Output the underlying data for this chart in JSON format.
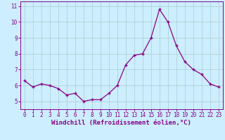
{
  "x": [
    0,
    1,
    2,
    3,
    4,
    5,
    6,
    7,
    8,
    9,
    10,
    11,
    12,
    13,
    14,
    15,
    16,
    17,
    18,
    19,
    20,
    21,
    22,
    23
  ],
  "y": [
    6.3,
    5.9,
    6.1,
    6.0,
    5.8,
    5.4,
    5.5,
    5.0,
    5.1,
    5.1,
    5.5,
    6.0,
    7.3,
    7.9,
    8.0,
    9.0,
    10.8,
    10.0,
    8.5,
    7.5,
    7.0,
    6.7,
    6.1,
    5.9
  ],
  "line_color": "#880088",
  "marker": "+",
  "marker_size": 3.5,
  "marker_linewidth": 1.0,
  "bg_color": "#cceeff",
  "grid_color": "#aacccc",
  "xlabel": "Windchill (Refroidissement éolien,°C)",
  "ylabel": "",
  "ylim": [
    4.5,
    11.3
  ],
  "xlim": [
    -0.5,
    23.5
  ],
  "yticks": [
    5,
    6,
    7,
    8,
    9,
    10,
    11
  ],
  "xticks": [
    0,
    1,
    2,
    3,
    4,
    5,
    6,
    7,
    8,
    9,
    10,
    11,
    12,
    13,
    14,
    15,
    16,
    17,
    18,
    19,
    20,
    21,
    22,
    23
  ],
  "tick_label_fontsize": 5.5,
  "xlabel_fontsize": 6.5,
  "spine_color": "#880088",
  "line_width": 0.9
}
